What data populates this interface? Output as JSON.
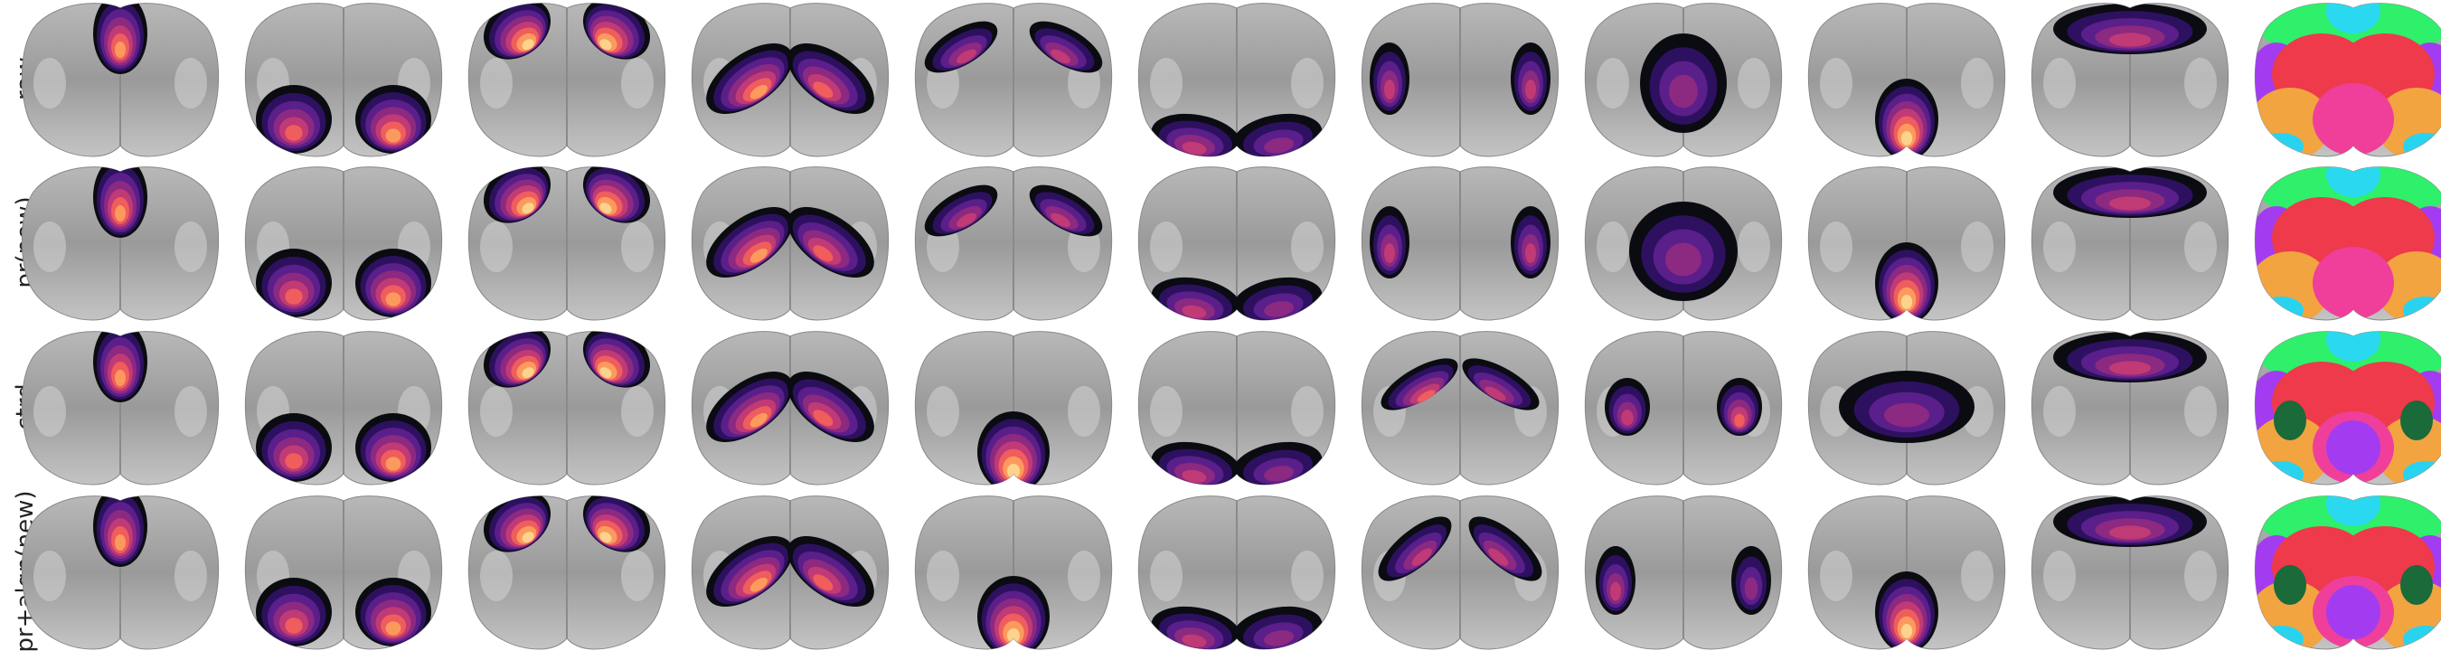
{
  "row_labels": [
    "raw",
    "pr(new)",
    "ctrd",
    "pr+algn(new)"
  ]
}
